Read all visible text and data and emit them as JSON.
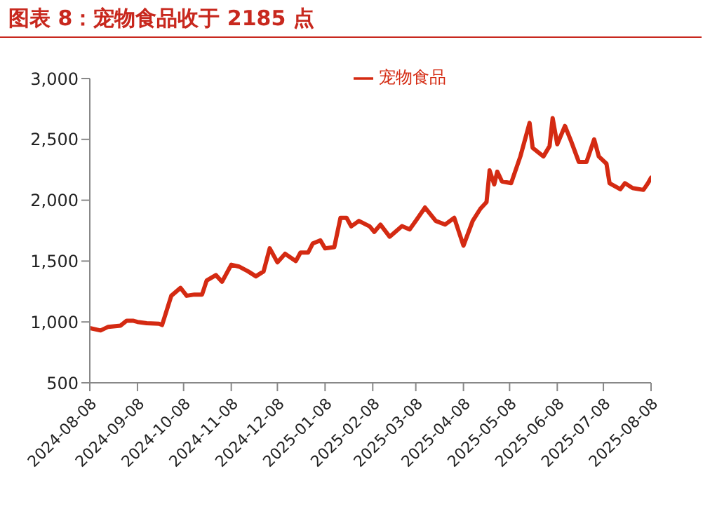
{
  "chart_data": {
    "type": "line",
    "title": "图表 8：宠物食品收于 2185 点",
    "x": [
      "2024-08-08",
      "2024-08-15",
      "2024-08-20",
      "2024-08-28",
      "2024-09-01",
      "2024-09-05",
      "2024-09-08",
      "2024-09-14",
      "2024-09-22",
      "2024-09-24",
      "2024-09-30",
      "2024-10-06",
      "2024-10-10",
      "2024-10-15",
      "2024-10-20",
      "2024-10-23",
      "2024-10-29",
      "2024-11-02",
      "2024-11-08",
      "2024-11-13",
      "2024-11-19",
      "2024-11-24",
      "2024-11-29",
      "2024-12-03",
      "2024-12-08",
      "2024-12-13",
      "2024-12-20",
      "2024-12-23",
      "2024-12-28",
      "2024-12-31",
      "2025-01-05",
      "2025-01-08",
      "2025-01-14",
      "2025-01-18",
      "2025-01-22",
      "2025-01-25",
      "2025-01-30",
      "2025-02-06",
      "2025-02-09",
      "2025-02-13",
      "2025-02-19",
      "2025-02-27",
      "2025-03-04",
      "2025-03-08",
      "2025-03-14",
      "2025-03-21",
      "2025-03-27",
      "2025-04-02",
      "2025-04-08",
      "2025-04-14",
      "2025-04-19",
      "2025-04-23",
      "2025-04-25",
      "2025-04-28",
      "2025-04-30",
      "2025-05-03",
      "2025-05-09",
      "2025-05-15",
      "2025-05-21",
      "2025-05-23",
      "2025-05-30",
      "2025-06-03",
      "2025-06-05",
      "2025-06-08",
      "2025-06-13",
      "2025-06-17",
      "2025-06-22",
      "2025-06-27",
      "2025-07-02",
      "2025-07-05",
      "2025-07-10",
      "2025-07-12",
      "2025-07-19",
      "2025-07-22",
      "2025-07-27",
      "2025-08-03",
      "2025-08-06",
      "2025-08-08"
    ],
    "series": [
      {
        "name": "宠物食品",
        "color": "#d42a12",
        "values": [
          950,
          930,
          960,
          970,
          1010,
          1010,
          1000,
          990,
          985,
          975,
          1215,
          1280,
          1215,
          1225,
          1225,
          1340,
          1385,
          1330,
          1470,
          1455,
          1415,
          1375,
          1415,
          1605,
          1490,
          1560,
          1500,
          1570,
          1570,
          1645,
          1670,
          1605,
          1615,
          1855,
          1855,
          1785,
          1830,
          1785,
          1740,
          1800,
          1700,
          1787,
          1760,
          1830,
          1940,
          1830,
          1800,
          1855,
          1627,
          1830,
          1930,
          1985,
          2245,
          2130,
          2235,
          2155,
          2140,
          2360,
          2635,
          2430,
          2360,
          2445,
          2675,
          2460,
          2610,
          2485,
          2315,
          2315,
          2500,
          2360,
          2300,
          2140,
          2090,
          2140,
          2100,
          2085,
          2140,
          2185
        ]
      }
    ],
    "xlim": [
      "2024-08-08",
      "2025-08-08"
    ],
    "xticks": [
      "2024-08-08",
      "2024-09-08",
      "2024-10-08",
      "2024-11-08",
      "2024-12-08",
      "2025-01-08",
      "2025-02-08",
      "2025-03-08",
      "2025-04-08",
      "2025-05-08",
      "2025-06-08",
      "2025-07-08",
      "2025-08-08"
    ],
    "ylim": [
      500,
      3000
    ],
    "yticks": [
      {
        "value": 500,
        "label": "500"
      },
      {
        "value": 1000,
        "label": "1,000"
      },
      {
        "value": 1500,
        "label": "1,500"
      },
      {
        "value": 2000,
        "label": "2,000"
      },
      {
        "value": 2500,
        "label": "2,500"
      },
      {
        "value": 3000,
        "label": "3,000"
      }
    ],
    "grid": false,
    "legend": "top",
    "marker": "none",
    "line_style": "solid"
  }
}
